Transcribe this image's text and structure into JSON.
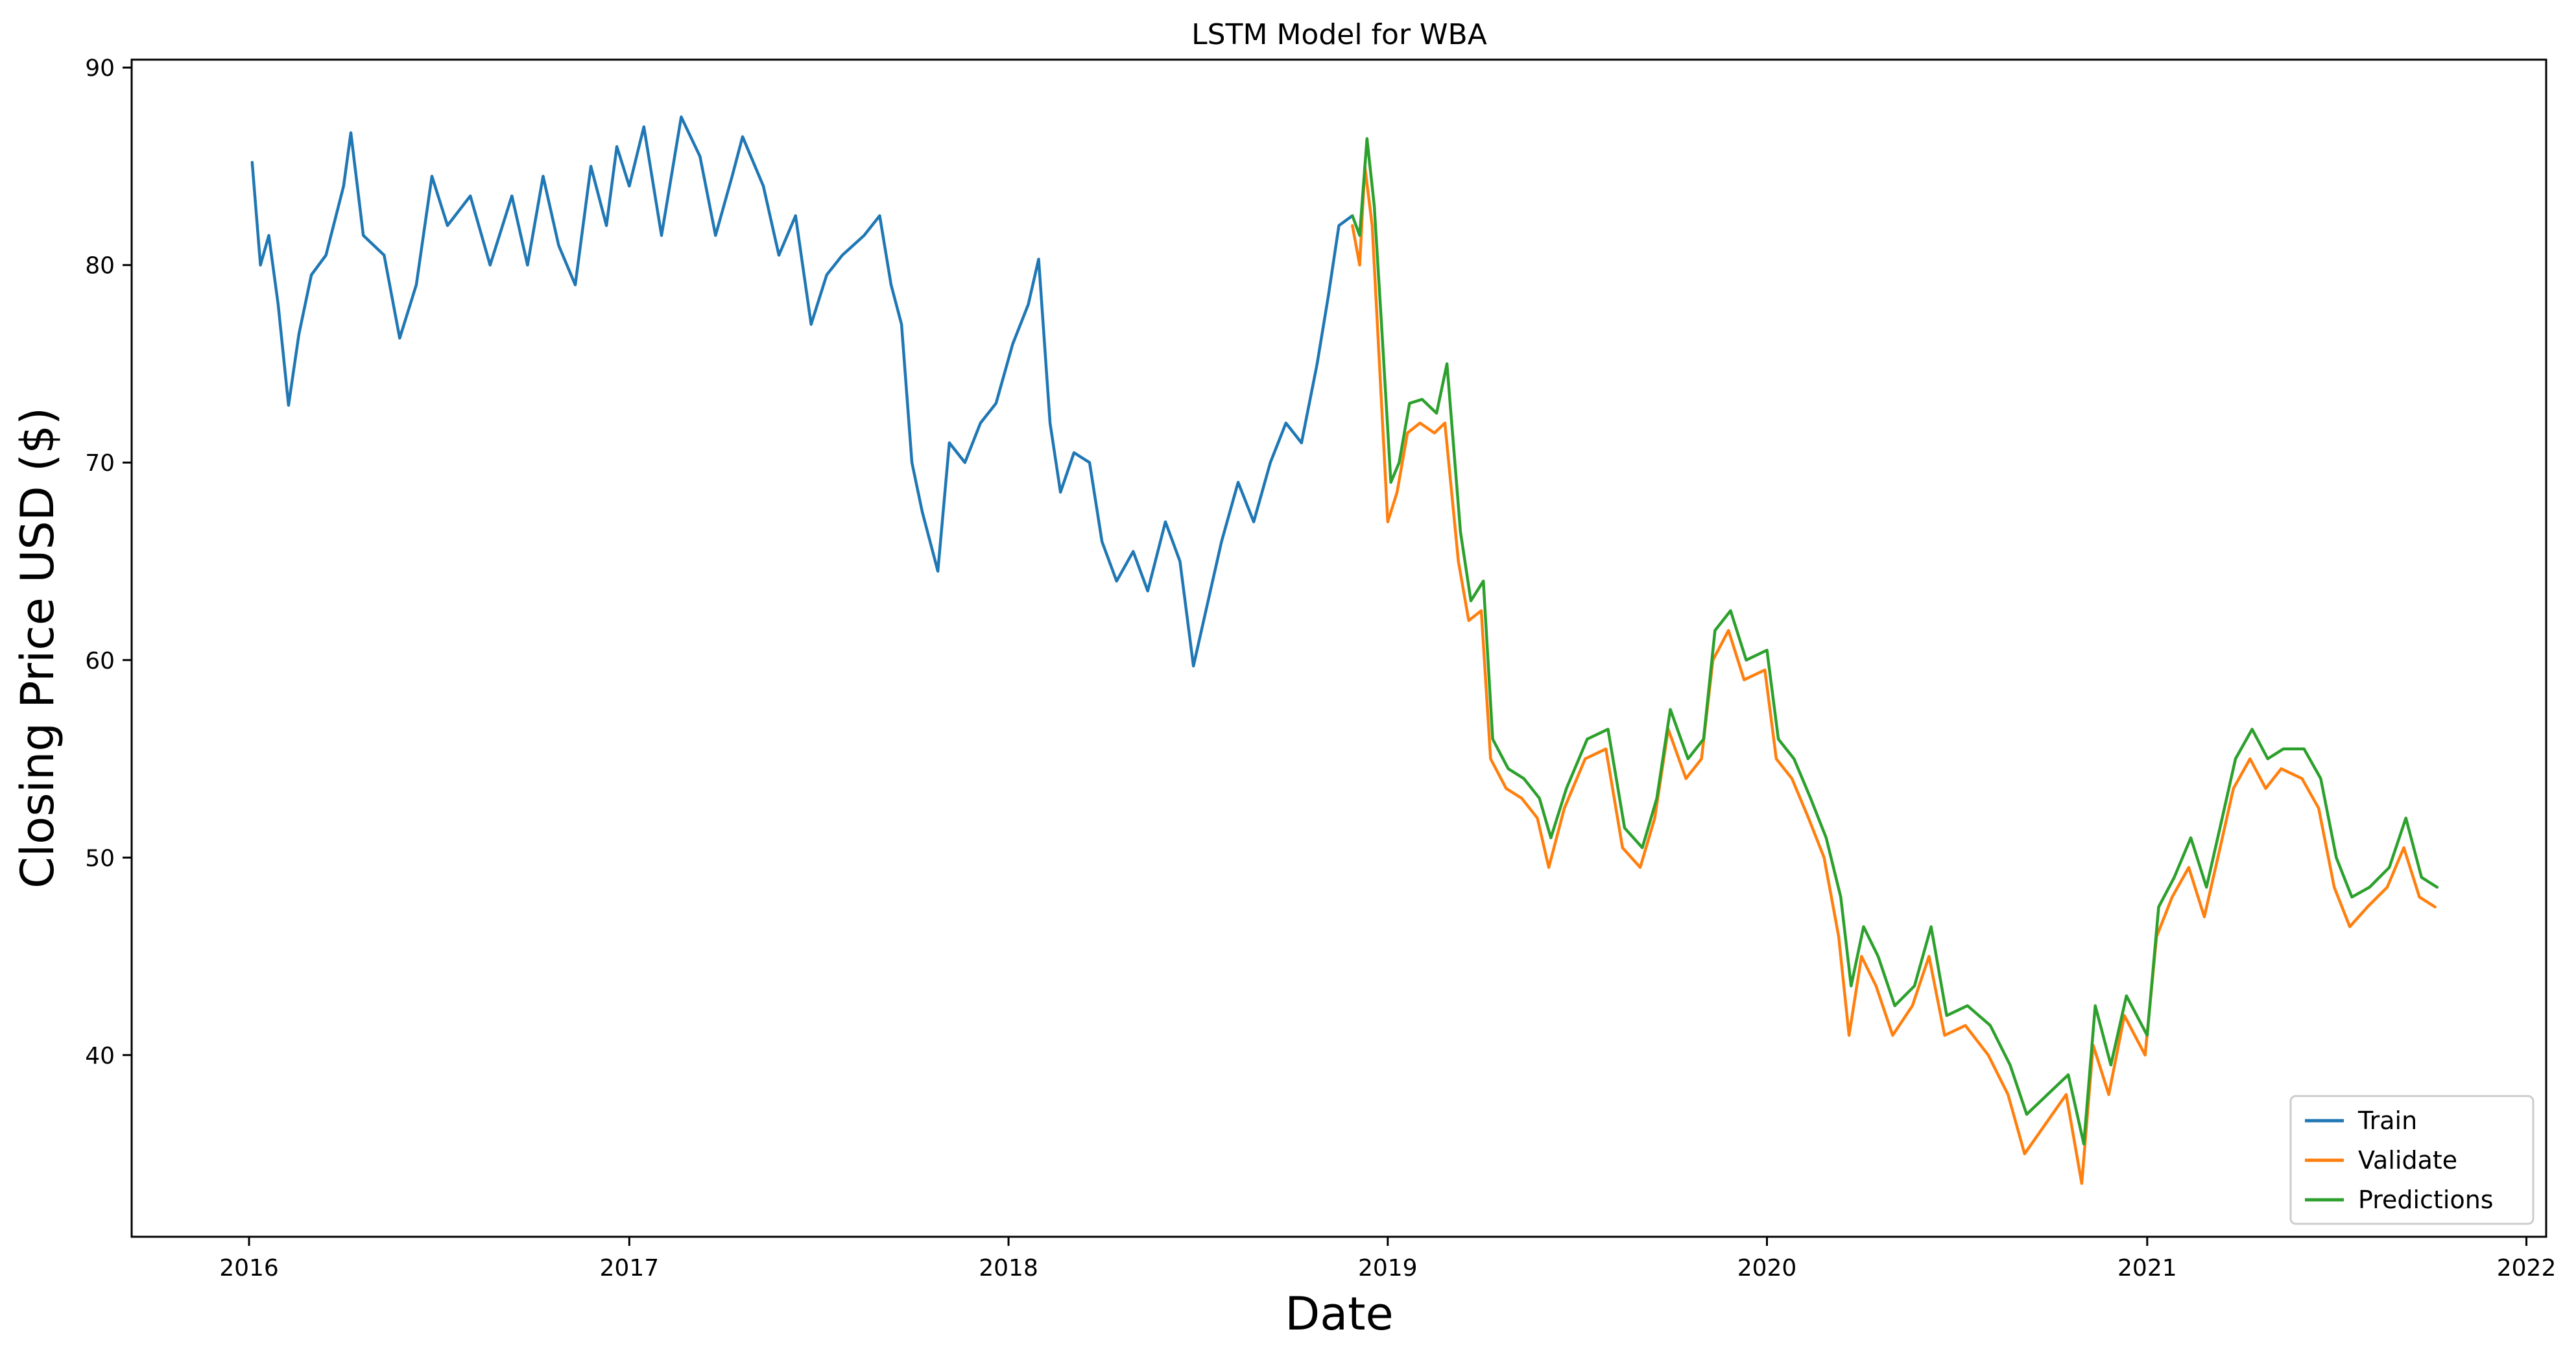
{
  "chart_data": {
    "type": "line",
    "title": "LSTM Model for WBA",
    "xlabel": "Date",
    "ylabel": "Closing Price USD ($)",
    "x_ticks": [
      "2016",
      "2017",
      "2018",
      "2019",
      "2020",
      "2021",
      "2022"
    ],
    "y_ticks": [
      "40",
      "50",
      "60",
      "70",
      "80",
      "90"
    ],
    "xlim": [
      "2015-09-10",
      "2022-01-20"
    ],
    "ylim": [
      30.8,
      90.4
    ],
    "grid": false,
    "legend_position": "bottom-right",
    "series": [
      {
        "name": "Train",
        "color": "#1f77b4",
        "points": [
          [
            "2016-01-04",
            85.2
          ],
          [
            "2016-01-12",
            80.0
          ],
          [
            "2016-01-20",
            81.5
          ],
          [
            "2016-01-29",
            78.0
          ],
          [
            "2016-02-08",
            72.9
          ],
          [
            "2016-02-18",
            76.5
          ],
          [
            "2016-03-01",
            79.5
          ],
          [
            "2016-03-15",
            80.5
          ],
          [
            "2016-04-01",
            84.0
          ],
          [
            "2016-04-08",
            86.7
          ],
          [
            "2016-04-20",
            81.5
          ],
          [
            "2016-05-10",
            80.5
          ],
          [
            "2016-05-25",
            76.3
          ],
          [
            "2016-06-10",
            79.0
          ],
          [
            "2016-06-25",
            84.5
          ],
          [
            "2016-07-10",
            82.0
          ],
          [
            "2016-08-01",
            83.5
          ],
          [
            "2016-08-20",
            80.0
          ],
          [
            "2016-09-10",
            83.5
          ],
          [
            "2016-09-25",
            80.0
          ],
          [
            "2016-10-10",
            84.5
          ],
          [
            "2016-10-25",
            81.0
          ],
          [
            "2016-11-10",
            79.0
          ],
          [
            "2016-11-25",
            85.0
          ],
          [
            "2016-12-10",
            82.0
          ],
          [
            "2016-12-20",
            86.0
          ],
          [
            "2017-01-01",
            84.0
          ],
          [
            "2017-01-15",
            87.0
          ],
          [
            "2017-02-01",
            81.5
          ],
          [
            "2017-02-20",
            87.5
          ],
          [
            "2017-03-10",
            85.5
          ],
          [
            "2017-03-25",
            81.5
          ],
          [
            "2017-04-10",
            84.5
          ],
          [
            "2017-04-20",
            86.5
          ],
          [
            "2017-05-10",
            84.0
          ],
          [
            "2017-05-25",
            80.5
          ],
          [
            "2017-06-10",
            82.5
          ],
          [
            "2017-06-25",
            77.0
          ],
          [
            "2017-07-10",
            79.5
          ],
          [
            "2017-07-25",
            80.5
          ],
          [
            "2017-08-15",
            81.5
          ],
          [
            "2017-08-30",
            82.5
          ],
          [
            "2017-09-10",
            79.0
          ],
          [
            "2017-09-20",
            77.0
          ],
          [
            "2017-09-30",
            70.0
          ],
          [
            "2017-10-10",
            67.5
          ],
          [
            "2017-10-25",
            64.5
          ],
          [
            "2017-11-05",
            71.0
          ],
          [
            "2017-11-20",
            70.0
          ],
          [
            "2017-12-05",
            72.0
          ],
          [
            "2017-12-20",
            73.0
          ],
          [
            "2018-01-05",
            76.0
          ],
          [
            "2018-01-20",
            78.0
          ],
          [
            "2018-01-30",
            80.3
          ],
          [
            "2018-02-10",
            72.0
          ],
          [
            "2018-02-20",
            68.5
          ],
          [
            "2018-03-05",
            70.5
          ],
          [
            "2018-03-20",
            70.0
          ],
          [
            "2018-04-01",
            66.0
          ],
          [
            "2018-04-15",
            64.0
          ],
          [
            "2018-05-01",
            65.5
          ],
          [
            "2018-05-15",
            63.5
          ],
          [
            "2018-06-01",
            67.0
          ],
          [
            "2018-06-15",
            65.0
          ],
          [
            "2018-06-28",
            59.7
          ],
          [
            "2018-07-10",
            62.5
          ],
          [
            "2018-07-25",
            66.0
          ],
          [
            "2018-08-10",
            69.0
          ],
          [
            "2018-08-25",
            67.0
          ],
          [
            "2018-09-10",
            70.0
          ],
          [
            "2018-09-25",
            72.0
          ],
          [
            "2018-10-10",
            71.0
          ],
          [
            "2018-10-25",
            75.0
          ],
          [
            "2018-11-05",
            78.5
          ],
          [
            "2018-11-15",
            82.0
          ],
          [
            "2018-11-28",
            82.5
          ]
        ]
      },
      {
        "name": "Validate",
        "color": "#ff7f0e",
        "points": [
          [
            "2018-11-28",
            82.0
          ],
          [
            "2018-12-05",
            80.0
          ],
          [
            "2018-12-10",
            85.0
          ],
          [
            "2018-12-17",
            82.0
          ],
          [
            "2018-12-24",
            75.0
          ],
          [
            "2019-01-01",
            67.0
          ],
          [
            "2019-01-10",
            68.5
          ],
          [
            "2019-01-20",
            71.5
          ],
          [
            "2019-02-01",
            72.0
          ],
          [
            "2019-02-15",
            71.5
          ],
          [
            "2019-02-25",
            72.0
          ],
          [
            "2019-03-10",
            65.0
          ],
          [
            "2019-03-20",
            62.0
          ],
          [
            "2019-04-01",
            62.5
          ],
          [
            "2019-04-10",
            55.0
          ],
          [
            "2019-04-25",
            53.5
          ],
          [
            "2019-05-10",
            53.0
          ],
          [
            "2019-05-25",
            52.0
          ],
          [
            "2019-06-05",
            49.5
          ],
          [
            "2019-06-20",
            52.5
          ],
          [
            "2019-07-10",
            55.0
          ],
          [
            "2019-07-30",
            55.5
          ],
          [
            "2019-08-15",
            50.5
          ],
          [
            "2019-09-01",
            49.5
          ],
          [
            "2019-09-15",
            52.0
          ],
          [
            "2019-09-28",
            56.5
          ],
          [
            "2019-10-15",
            54.0
          ],
          [
            "2019-10-30",
            55.0
          ],
          [
            "2019-11-10",
            60.0
          ],
          [
            "2019-11-25",
            61.5
          ],
          [
            "2019-12-10",
            59.0
          ],
          [
            "2019-12-30",
            59.5
          ],
          [
            "2020-01-10",
            55.0
          ],
          [
            "2020-01-25",
            54.0
          ],
          [
            "2020-02-10",
            52.0
          ],
          [
            "2020-02-25",
            50.0
          ],
          [
            "2020-03-10",
            46.0
          ],
          [
            "2020-03-20",
            41.0
          ],
          [
            "2020-04-01",
            45.0
          ],
          [
            "2020-04-15",
            43.5
          ],
          [
            "2020-05-01",
            41.0
          ],
          [
            "2020-05-20",
            42.5
          ],
          [
            "2020-06-05",
            45.0
          ],
          [
            "2020-06-20",
            41.0
          ],
          [
            "2020-07-10",
            41.5
          ],
          [
            "2020-08-01",
            40.0
          ],
          [
            "2020-08-20",
            38.0
          ],
          [
            "2020-09-05",
            35.0
          ],
          [
            "2020-09-25",
            36.5
          ],
          [
            "2020-10-15",
            38.0
          ],
          [
            "2020-10-30",
            33.5
          ],
          [
            "2020-11-10",
            40.5
          ],
          [
            "2020-11-25",
            38.0
          ],
          [
            "2020-12-10",
            42.0
          ],
          [
            "2020-12-30",
            40.0
          ],
          [
            "2021-01-10",
            46.0
          ],
          [
            "2021-01-25",
            48.0
          ],
          [
            "2021-02-10",
            49.5
          ],
          [
            "2021-02-25",
            47.0
          ],
          [
            "2021-03-10",
            50.0
          ],
          [
            "2021-03-25",
            53.5
          ],
          [
            "2021-04-10",
            55.0
          ],
          [
            "2021-04-25",
            53.5
          ],
          [
            "2021-05-10",
            54.5
          ],
          [
            "2021-05-30",
            54.0
          ],
          [
            "2021-06-15",
            52.5
          ],
          [
            "2021-06-30",
            48.5
          ],
          [
            "2021-07-15",
            46.5
          ],
          [
            "2021-08-01",
            47.5
          ],
          [
            "2021-08-20",
            48.5
          ],
          [
            "2021-09-05",
            50.5
          ],
          [
            "2021-09-20",
            48.0
          ],
          [
            "2021-10-05",
            47.5
          ]
        ]
      },
      {
        "name": "Predictions",
        "color": "#2ca02c",
        "points": [
          [
            "2018-11-28",
            82.5
          ],
          [
            "2018-12-05",
            81.5
          ],
          [
            "2018-12-12",
            86.4
          ],
          [
            "2018-12-19",
            83.0
          ],
          [
            "2018-12-26",
            77.0
          ],
          [
            "2019-01-04",
            69.0
          ],
          [
            "2019-01-12",
            70.0
          ],
          [
            "2019-01-22",
            73.0
          ],
          [
            "2019-02-03",
            73.2
          ],
          [
            "2019-02-17",
            72.5
          ],
          [
            "2019-02-27",
            75.0
          ],
          [
            "2019-03-12",
            66.5
          ],
          [
            "2019-03-22",
            63.0
          ],
          [
            "2019-04-03",
            64.0
          ],
          [
            "2019-04-12",
            56.0
          ],
          [
            "2019-04-27",
            54.5
          ],
          [
            "2019-05-12",
            54.0
          ],
          [
            "2019-05-27",
            53.0
          ],
          [
            "2019-06-07",
            51.0
          ],
          [
            "2019-06-22",
            53.5
          ],
          [
            "2019-07-12",
            56.0
          ],
          [
            "2019-08-01",
            56.5
          ],
          [
            "2019-08-17",
            51.5
          ],
          [
            "2019-09-03",
            50.5
          ],
          [
            "2019-09-17",
            53.0
          ],
          [
            "2019-09-30",
            57.5
          ],
          [
            "2019-10-17",
            55.0
          ],
          [
            "2019-11-01",
            56.0
          ],
          [
            "2019-11-12",
            61.5
          ],
          [
            "2019-11-27",
            62.5
          ],
          [
            "2019-12-12",
            60.0
          ],
          [
            "2020-01-01",
            60.5
          ],
          [
            "2020-01-12",
            56.0
          ],
          [
            "2020-01-27",
            55.0
          ],
          [
            "2020-02-12",
            53.0
          ],
          [
            "2020-02-27",
            51.0
          ],
          [
            "2020-03-12",
            48.0
          ],
          [
            "2020-03-22",
            43.5
          ],
          [
            "2020-04-03",
            46.5
          ],
          [
            "2020-04-17",
            45.0
          ],
          [
            "2020-05-03",
            42.5
          ],
          [
            "2020-05-22",
            43.5
          ],
          [
            "2020-06-07",
            46.5
          ],
          [
            "2020-06-22",
            42.0
          ],
          [
            "2020-07-12",
            42.5
          ],
          [
            "2020-08-03",
            41.5
          ],
          [
            "2020-08-22",
            39.5
          ],
          [
            "2020-09-07",
            37.0
          ],
          [
            "2020-09-27",
            38.0
          ],
          [
            "2020-10-17",
            39.0
          ],
          [
            "2020-11-01",
            35.5
          ],
          [
            "2020-11-12",
            42.5
          ],
          [
            "2020-11-27",
            39.5
          ],
          [
            "2020-12-12",
            43.0
          ],
          [
            "2021-01-01",
            41.0
          ],
          [
            "2021-01-12",
            47.5
          ],
          [
            "2021-01-27",
            49.0
          ],
          [
            "2021-02-12",
            51.0
          ],
          [
            "2021-02-27",
            48.5
          ],
          [
            "2021-03-12",
            51.5
          ],
          [
            "2021-03-27",
            55.0
          ],
          [
            "2021-04-12",
            56.5
          ],
          [
            "2021-04-27",
            55.0
          ],
          [
            "2021-05-12",
            55.5
          ],
          [
            "2021-06-01",
            55.5
          ],
          [
            "2021-06-17",
            54.0
          ],
          [
            "2021-07-02",
            50.0
          ],
          [
            "2021-07-17",
            48.0
          ],
          [
            "2021-08-03",
            48.5
          ],
          [
            "2021-08-22",
            49.5
          ],
          [
            "2021-09-07",
            52.0
          ],
          [
            "2021-09-22",
            49.0
          ],
          [
            "2021-10-07",
            48.5
          ]
        ]
      }
    ]
  }
}
